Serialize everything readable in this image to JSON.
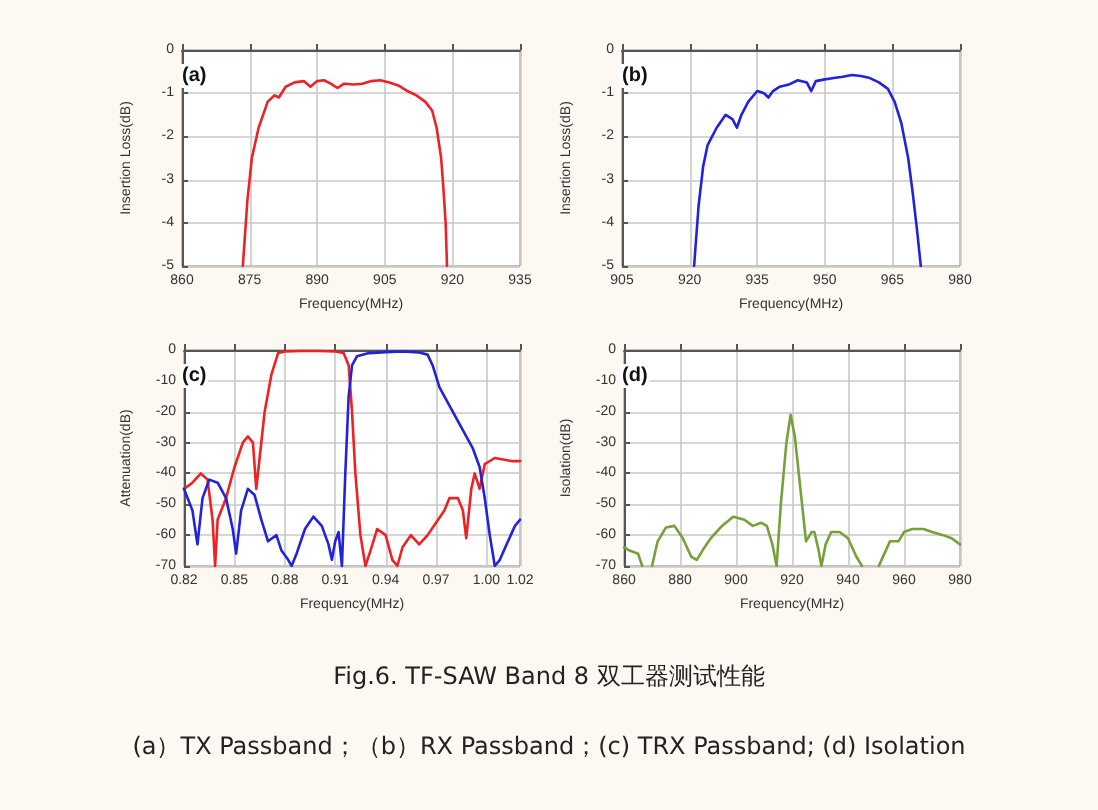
{
  "chart_data": [
    {
      "type": "line",
      "title": "(a)",
      "xlabel": "Frequency(MHz)",
      "ylabel": "Insertion Loss(dB)",
      "xlim": [
        860,
        935
      ],
      "xticks": [
        860,
        875,
        890,
        905,
        920,
        935
      ],
      "ylim": [
        -5,
        0
      ],
      "yticks": [
        -5,
        -4,
        -3,
        -2,
        -1,
        0
      ],
      "grid": true,
      "marker": "none",
      "line_style": "solid",
      "series": [
        {
          "color": "#ee2222",
          "x": [
            873.5,
            874.5,
            875.5,
            877,
            879,
            880.5,
            881.5,
            883,
            885,
            887,
            888.5,
            890,
            891.5,
            893,
            894.5,
            896,
            898,
            900,
            902,
            904,
            906,
            908,
            910,
            912,
            914,
            915.5,
            916.5,
            917.5,
            918,
            918.5,
            918.8
          ],
          "values": [
            -5,
            -3.5,
            -2.5,
            -1.8,
            -1.2,
            -1.05,
            -1.1,
            -0.85,
            -0.75,
            -0.72,
            -0.85,
            -0.72,
            -0.7,
            -0.78,
            -0.88,
            -0.78,
            -0.8,
            -0.78,
            -0.72,
            -0.7,
            -0.75,
            -0.82,
            -0.95,
            -1.05,
            -1.2,
            -1.4,
            -1.8,
            -2.5,
            -3.2,
            -4,
            -5
          ]
        }
      ]
    },
    {
      "type": "line",
      "title": "(b)",
      "xlabel": "Frequency(MHz)",
      "ylabel": "Insertion Loss(dB)",
      "xlim": [
        905,
        980
      ],
      "xticks": [
        905,
        920,
        935,
        950,
        965,
        980
      ],
      "ylim": [
        -5,
        0
      ],
      "yticks": [
        -5,
        -4,
        -3,
        -2,
        -1,
        0
      ],
      "grid": true,
      "marker": "none",
      "line_style": "solid",
      "series": [
        {
          "color": "#2222dd",
          "x": [
            921,
            922,
            923,
            924,
            926,
            928,
            929.5,
            930.5,
            931.5,
            933,
            935,
            936.5,
            937.5,
            938.5,
            940,
            942,
            944,
            946,
            947,
            948,
            950,
            952,
            954,
            956,
            958,
            960,
            962,
            964,
            965.5,
            967,
            968.5,
            969.5,
            970.5,
            971.3
          ],
          "values": [
            -5,
            -3.6,
            -2.7,
            -2.2,
            -1.8,
            -1.5,
            -1.6,
            -1.8,
            -1.5,
            -1.2,
            -0.95,
            -1,
            -1.1,
            -0.95,
            -0.85,
            -0.8,
            -0.7,
            -0.75,
            -0.95,
            -0.72,
            -0.68,
            -0.65,
            -0.62,
            -0.58,
            -0.6,
            -0.65,
            -0.75,
            -0.9,
            -1.2,
            -1.7,
            -2.5,
            -3.3,
            -4.2,
            -5
          ]
        }
      ]
    },
    {
      "type": "line",
      "title": "(c)",
      "xlabel": "Frequency(MHz)",
      "ylabel": "Attenuation(dB)",
      "xlim": [
        0.82,
        1.02
      ],
      "xticks": [
        0.82,
        0.85,
        0.88,
        0.91,
        0.94,
        0.97,
        {
          "value": 1,
          "label": "1.00"
        },
        1.02
      ],
      "ylim": [
        -70,
        0
      ],
      "yticks": [
        -70,
        -60,
        -50,
        -40,
        -30,
        -20,
        -10,
        0
      ],
      "grid": true,
      "marker": "none",
      "line_style": "solid",
      "series": [
        {
          "color": "#ee2222",
          "x": [
            0.82,
            0.825,
            0.83,
            0.834,
            0.837,
            0.8385,
            0.84,
            0.845,
            0.85,
            0.855,
            0.858,
            0.861,
            0.863,
            0.865,
            0.868,
            0.872,
            0.876,
            0.88,
            0.89,
            0.9,
            0.91,
            0.915,
            0.918,
            0.92,
            0.922,
            0.925,
            0.928,
            0.931,
            0.935,
            0.94,
            0.944,
            0.947,
            0.95,
            0.955,
            0.96,
            0.965,
            0.97,
            0.975,
            0.978,
            0.983,
            0.986,
            0.988,
            0.991,
            0.993,
            0.996,
            0.999,
            1.005,
            1.015,
            1.02
          ],
          "values": [
            -45,
            -43,
            -40,
            -42,
            -55,
            -70,
            -55,
            -48,
            -38,
            -30,
            -28,
            -30,
            -45,
            -35,
            -20,
            -8,
            -1,
            -0.5,
            -0.3,
            -0.3,
            -0.5,
            -1,
            -5,
            -20,
            -40,
            -60,
            -70,
            -65,
            -58,
            -60,
            -68,
            -70,
            -64,
            -60,
            -63,
            -60,
            -56,
            -52,
            -48,
            -48,
            -52,
            -61,
            -45,
            -40,
            -45,
            -37,
            -35,
            -36,
            -36
          ]
        },
        {
          "color": "#2222dd",
          "x": [
            0.82,
            0.825,
            0.828,
            0.831,
            0.835,
            0.84,
            0.845,
            0.849,
            0.851,
            0.854,
            0.858,
            0.862,
            0.866,
            0.87,
            0.875,
            0.878,
            0.882,
            0.884,
            0.887,
            0.892,
            0.897,
            0.902,
            0.906,
            0.908,
            0.91,
            0.912,
            0.914,
            0.916,
            0.918,
            0.92,
            0.923,
            0.93,
            0.94,
            0.95,
            0.96,
            0.965,
            0.968,
            0.972,
            0.978,
            0.985,
            0.992,
            0.996,
            0.999,
            1.002,
            1.005,
            1.008,
            1.012,
            1.017,
            1.02
          ],
          "values": [
            -45,
            -52,
            -63,
            -48,
            -42,
            -43,
            -48,
            -58,
            -66,
            -52,
            -45,
            -47,
            -55,
            -62,
            -60,
            -65,
            -68,
            -70,
            -66,
            -58,
            -54,
            -57,
            -63,
            -68,
            -62,
            -59,
            -70,
            -40,
            -15,
            -5,
            -2,
            -1,
            -0.7,
            -0.5,
            -0.8,
            -1.5,
            -5,
            -12,
            -18,
            -25,
            -32,
            -38,
            -48,
            -60,
            -70,
            -68,
            -63,
            -57,
            -55
          ]
        }
      ]
    },
    {
      "type": "line",
      "title": "(d)",
      "xlabel": "Frequency(MHz)",
      "ylabel": "Isolation(dB)",
      "xlim": [
        860,
        980
      ],
      "xticks": [
        860,
        880,
        900,
        920,
        940,
        960,
        980
      ],
      "ylim": [
        -70,
        0
      ],
      "yticks": [
        -70,
        -60,
        -50,
        -40,
        -30,
        -20,
        -10,
        0
      ],
      "grid": true,
      "marker": "none",
      "line_style": "solid",
      "annotations": [
        "Fig.6. TF-SAW Band 8 双工器测试性能",
        "(a）TX Passband；（b）RX Passband；(c) TRX Passband; (d) Isolation"
      ],
      "series": [
        {
          "color": "#77a03a",
          "x": [
            860,
            862,
            865,
            866.5,
            868,
            870,
            872,
            875,
            878,
            881,
            884,
            886,
            888,
            891,
            895,
            899,
            903,
            906,
            909,
            911,
            913,
            914.5,
            916,
            918,
            919.5,
            921,
            923,
            925,
            927,
            928,
            929.5,
            930.5,
            932,
            934,
            937,
            940,
            943,
            945,
            948,
            951,
            953,
            955,
            958,
            960,
            963,
            967,
            970,
            974,
            977,
            980
          ],
          "values": [
            -64,
            -65,
            -66,
            -70,
            null,
            -70,
            -62,
            -57.5,
            -57,
            -61,
            -67,
            -68,
            -65,
            -61,
            -57,
            -54,
            -55,
            -57,
            -56,
            -57,
            -63,
            -70,
            -50,
            -30,
            -21,
            -28,
            -45,
            -62,
            -59,
            -59,
            -65,
            -70,
            -63,
            -59,
            -59,
            -61,
            -67,
            -70,
            null,
            -70,
            -66,
            -62,
            -62,
            -59,
            -58,
            -58,
            -59,
            -60,
            -61,
            -63
          ]
        }
      ]
    }
  ]
}
